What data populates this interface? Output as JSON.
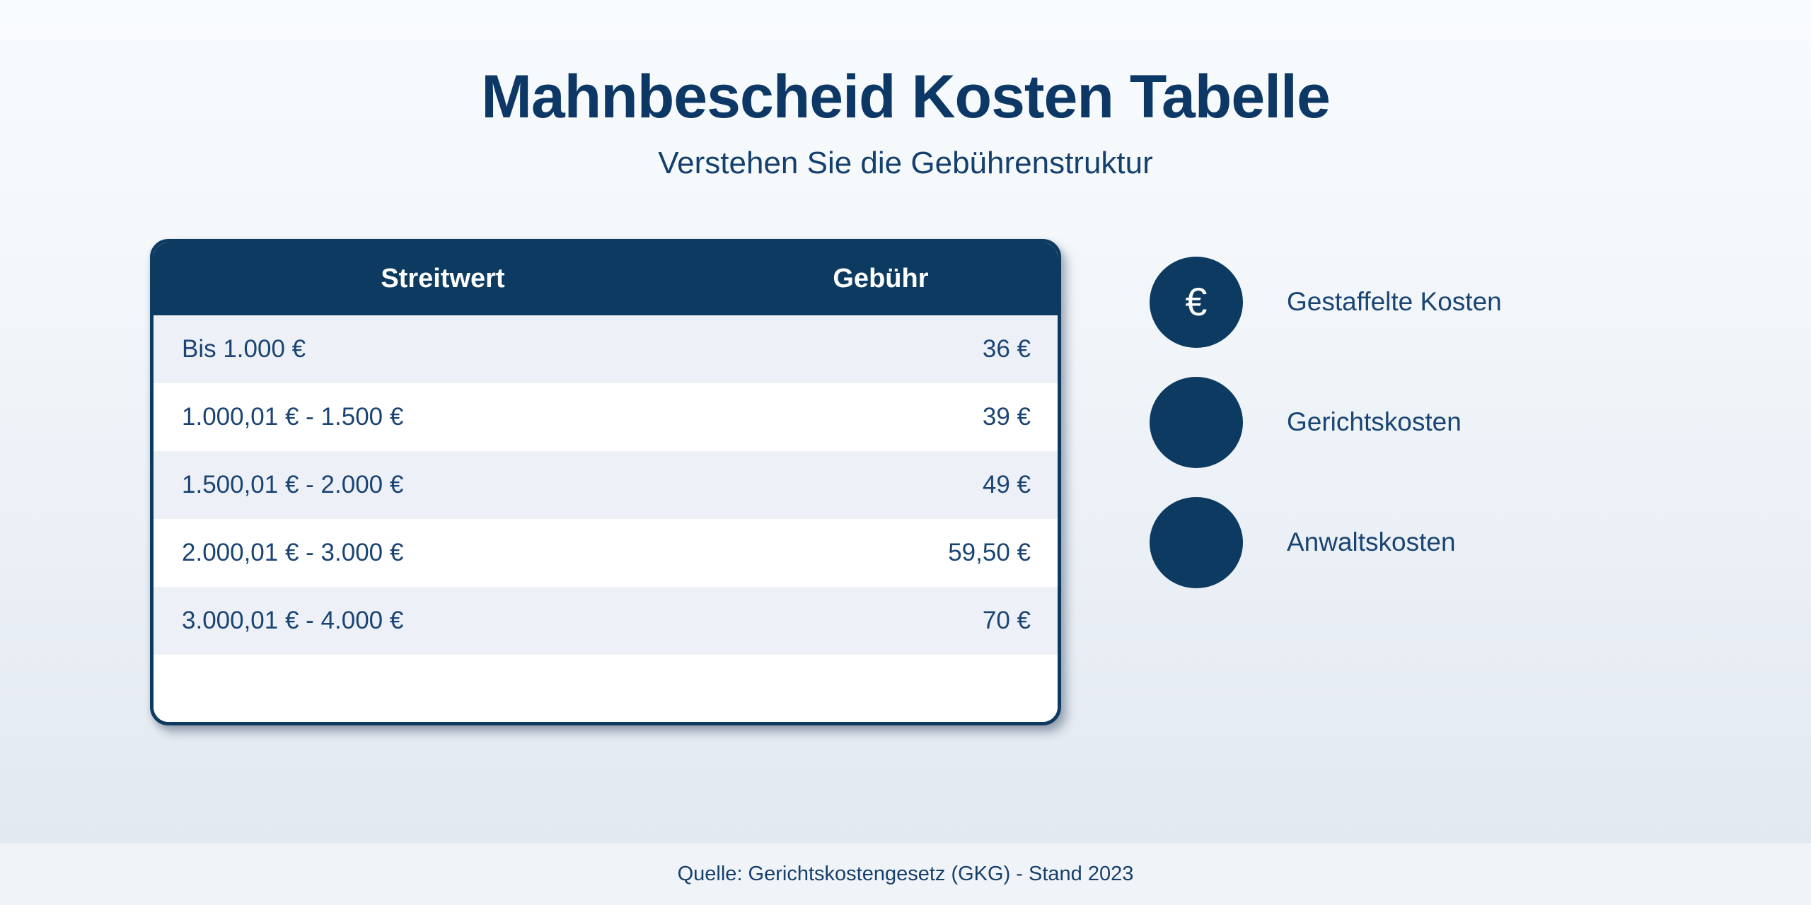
{
  "page": {
    "title": "Mahnbescheid Kosten Tabelle",
    "subtitle": "Verstehen Sie die Gebührenstruktur",
    "source": "Quelle: Gerichtskostengesetz (GKG) - Stand 2023"
  },
  "table": {
    "columns": [
      "Streitwert",
      "Gebühr"
    ],
    "rows": [
      {
        "streitwert": "Bis 1.000 €",
        "gebuehr": "36 €"
      },
      {
        "streitwert": "1.000,01 € - 1.500 €",
        "gebuehr": "39 €"
      },
      {
        "streitwert": "1.500,01 € - 2.000 €",
        "gebuehr": "49 €"
      },
      {
        "streitwert": "2.000,01 € - 3.000 €",
        "gebuehr": "59,50 €"
      },
      {
        "streitwert": "3.000,01 € - 4.000 €",
        "gebuehr": "70 €"
      }
    ]
  },
  "legend": {
    "items": [
      {
        "symbol": "€",
        "label": "Gestaffelte Kosten"
      },
      {
        "symbol": "",
        "label": "Gerichtskosten"
      },
      {
        "symbol": "",
        "label": "Anwaltskosten"
      }
    ]
  },
  "chart_data": {
    "type": "table",
    "title": "Mahnbescheid Kosten Tabelle",
    "subtitle": "Verstehen Sie die Gebührenstruktur",
    "columns": [
      "Streitwert",
      "Gebühr"
    ],
    "rows": [
      [
        "Bis 1.000 €",
        "36 €"
      ],
      [
        "1.000,01 € - 1.500 €",
        "39 €"
      ],
      [
        "1.500,01 € - 2.000 €",
        "49 €"
      ],
      [
        "2.000,01 € - 3.000 €",
        "59,50 €"
      ],
      [
        "3.000,01 € - 4.000 €",
        "70 €"
      ]
    ],
    "fees_numeric_eur": [
      36,
      39,
      49,
      59.5,
      70
    ],
    "legend": [
      "Gestaffelte Kosten",
      "Gerichtskosten",
      "Anwaltskosten"
    ],
    "source": "Quelle: Gerichtskostengesetz (GKG) - Stand 2023"
  },
  "colors": {
    "navy": "#0d3a60",
    "title_text": "#0d3866",
    "body_text": "#1a4473",
    "row_light": "#edf1f7",
    "row_white": "#ffffff",
    "header_text": "#ffffff",
    "footer_bg": "#f0f4f9"
  }
}
